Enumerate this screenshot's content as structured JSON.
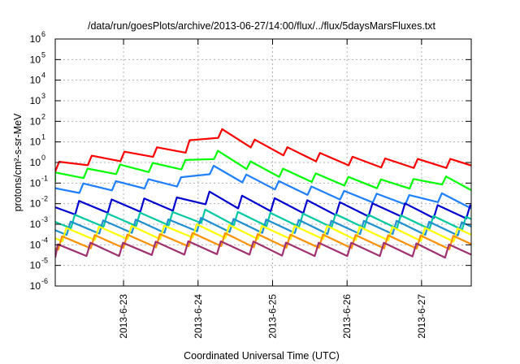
{
  "chart_data": {
    "type": "line",
    "title": "/data/run/goesPlots/archive/2013-06-27/14:00/flux/../flux/5daysMarsFluxes.txt",
    "xlabel": "Coordinated Universal Time (UTC)",
    "ylabel": "protons/cm²-s-sr-MeV",
    "yscale": "log",
    "xlim": [
      "2013-06-22T02:00",
      "2013-06-27T16:00"
    ],
    "ylim": [
      1e-06,
      1000000.0
    ],
    "grid": true,
    "legend": "none",
    "x_ticks": [
      "2013-6-23",
      "2013-6-24",
      "2013-6-25",
      "2013-6-26",
      "2013-6-27"
    ],
    "y_ticks": [
      {
        "label": "10",
        "exp": "-6"
      },
      {
        "label": "10",
        "exp": "-5"
      },
      {
        "label": "10",
        "exp": "-4"
      },
      {
        "label": "10",
        "exp": "-3"
      },
      {
        "label": "10",
        "exp": "-2"
      },
      {
        "label": "10",
        "exp": "-1"
      },
      {
        "label": "10",
        "exp": "0"
      },
      {
        "label": "10",
        "exp": "1"
      },
      {
        "label": "10",
        "exp": "2"
      },
      {
        "label": "10",
        "exp": "3"
      },
      {
        "label": "10",
        "exp": "4"
      },
      {
        "label": "10",
        "exp": "5"
      },
      {
        "label": "10",
        "exp": "6"
      }
    ],
    "series": [
      {
        "color": "#ff0000",
        "x": [
          "2013-06-22T02:00",
          "2013-06-22T12:00",
          "2013-06-23T00:00",
          "2013-06-23T12:00",
          "2013-06-23T20:00",
          "2013-06-24T02:00",
          "2013-06-24T08:00",
          "2013-06-24T18:00",
          "2013-06-25T06:00",
          "2013-06-25T18:00",
          "2013-06-26T06:00",
          "2013-06-26T18:00",
          "2013-06-27T06:00",
          "2013-06-27T16:00"
        ],
        "y": [
          0.6,
          1.2,
          2.0,
          3.5,
          5.0,
          30,
          25,
          8,
          3,
          1.5,
          1.0,
          0.9,
          0.9,
          0.9
        ]
      },
      {
        "color": "#00ff00",
        "x": [
          "2013-06-22T02:00",
          "2013-06-22T12:00",
          "2013-06-23T00:00",
          "2013-06-23T12:00",
          "2013-06-23T20:00",
          "2013-06-24T02:00",
          "2013-06-24T08:00",
          "2013-06-24T18:00",
          "2013-06-25T06:00",
          "2013-06-25T18:00",
          "2013-06-26T06:00",
          "2013-06-26T18:00",
          "2013-06-27T06:00",
          "2013-06-27T16:00"
        ],
        "y": [
          0.2,
          0.3,
          0.5,
          0.6,
          0.8,
          3,
          2,
          0.6,
          0.25,
          0.15,
          0.1,
          0.08,
          0.15,
          0.06
        ]
      },
      {
        "color": "#1e7fff",
        "x": [
          "2013-06-22T02:00",
          "2013-06-22T12:00",
          "2013-06-23T00:00",
          "2013-06-23T12:00",
          "2013-06-23T20:00",
          "2013-06-24T02:00",
          "2013-06-24T08:00",
          "2013-06-24T18:00",
          "2013-06-25T06:00",
          "2013-06-25T18:00",
          "2013-06-26T06:00",
          "2013-06-26T18:00",
          "2013-06-27T06:00",
          "2013-06-27T16:00"
        ],
        "y": [
          0.04,
          0.06,
          0.08,
          0.1,
          0.12,
          0.5,
          0.35,
          0.12,
          0.06,
          0.03,
          0.02,
          0.015,
          0.02,
          0.01
        ]
      },
      {
        "color": "#0000d0",
        "x": [
          "2013-06-22T02:00",
          "2013-06-22T12:00",
          "2013-06-23T00:00",
          "2013-06-23T12:00",
          "2013-06-23T20:00",
          "2013-06-24T02:00",
          "2013-06-24T08:00",
          "2013-06-24T18:00",
          "2013-06-25T06:00",
          "2013-06-25T18:00",
          "2013-06-26T06:00",
          "2013-06-26T18:00",
          "2013-06-27T06:00",
          "2013-06-27T16:00"
        ],
        "y": [
          0.005,
          0.007,
          0.008,
          0.009,
          0.01,
          0.02,
          0.015,
          0.01,
          0.008,
          0.006,
          0.005,
          0.005,
          0.004,
          0.004
        ]
      },
      {
        "color": "#00c8a0",
        "x": [
          "2013-06-22T02:00",
          "2013-06-22T12:00",
          "2013-06-23T00:00",
          "2013-06-23T12:00",
          "2013-06-23T20:00",
          "2013-06-24T02:00",
          "2013-06-24T08:00",
          "2013-06-24T18:00",
          "2013-06-25T06:00",
          "2013-06-25T18:00",
          "2013-06-26T06:00",
          "2013-06-26T18:00",
          "2013-06-27T06:00",
          "2013-06-27T16:00"
        ],
        "y": [
          0.0012,
          0.0015,
          0.0017,
          0.0018,
          0.002,
          0.0025,
          0.002,
          0.0018,
          0.0016,
          0.0015,
          0.0014,
          0.0013,
          0.0012,
          0.0011
        ]
      },
      {
        "color": "#1e90d0",
        "x": [
          "2013-06-22T02:00",
          "2013-06-22T12:00",
          "2013-06-23T00:00",
          "2013-06-23T12:00",
          "2013-06-23T20:00",
          "2013-06-24T02:00",
          "2013-06-24T08:00",
          "2013-06-24T18:00",
          "2013-06-25T06:00",
          "2013-06-25T18:00",
          "2013-06-26T06:00",
          "2013-06-26T18:00",
          "2013-06-27T06:00",
          "2013-06-27T16:00"
        ],
        "y": [
          0.0006,
          0.0007,
          0.0008,
          0.0008,
          0.0009,
          0.001,
          0.0009,
          0.0008,
          0.0008,
          0.0007,
          0.0007,
          0.0007,
          0.0006,
          0.0006
        ]
      },
      {
        "color": "#ffff00",
        "x": [
          "2013-06-22T02:00",
          "2013-06-22T12:00",
          "2013-06-23T00:00",
          "2013-06-23T12:00",
          "2013-06-23T20:00",
          "2013-06-24T02:00",
          "2013-06-24T08:00",
          "2013-06-24T18:00",
          "2013-06-25T06:00",
          "2013-06-25T18:00",
          "2013-06-26T06:00",
          "2013-06-26T18:00",
          "2013-06-27T06:00",
          "2013-06-27T16:00"
        ],
        "y": [
          0.0003,
          0.00035,
          0.0004,
          0.0004,
          0.00045,
          0.0005,
          0.00045,
          0.0004,
          0.0004,
          0.0004,
          0.00035,
          0.00035,
          0.0003,
          0.0003
        ]
      },
      {
        "color": "#ff9000",
        "x": [
          "2013-06-22T02:00",
          "2013-06-22T12:00",
          "2013-06-23T00:00",
          "2013-06-23T12:00",
          "2013-06-23T20:00",
          "2013-06-24T02:00",
          "2013-06-24T08:00",
          "2013-06-24T18:00",
          "2013-06-25T06:00",
          "2013-06-25T18:00",
          "2013-06-26T06:00",
          "2013-06-26T18:00",
          "2013-06-27T06:00",
          "2013-06-27T16:00"
        ],
        "y": [
          0.00012,
          0.00014,
          0.00015,
          0.00016,
          0.00017,
          0.0002,
          0.00018,
          0.00016,
          0.00015,
          0.00015,
          0.00014,
          0.00014,
          0.00013,
          0.00013
        ]
      },
      {
        "color": "#a03070",
        "x": [
          "2013-06-22T02:00",
          "2013-06-22T12:00",
          "2013-06-23T00:00",
          "2013-06-23T12:00",
          "2013-06-23T20:00",
          "2013-06-24T02:00",
          "2013-06-24T08:00",
          "2013-06-24T18:00",
          "2013-06-25T06:00",
          "2013-06-25T18:00",
          "2013-06-26T06:00",
          "2013-06-26T18:00",
          "2013-06-27T06:00",
          "2013-06-27T16:00"
        ],
        "y": [
          5e-05,
          6e-05,
          6e-05,
          7e-05,
          7e-05,
          8e-05,
          7e-05,
          7e-05,
          6e-05,
          6e-05,
          6e-05,
          6e-05,
          5e-05,
          5e-05
        ]
      }
    ]
  }
}
